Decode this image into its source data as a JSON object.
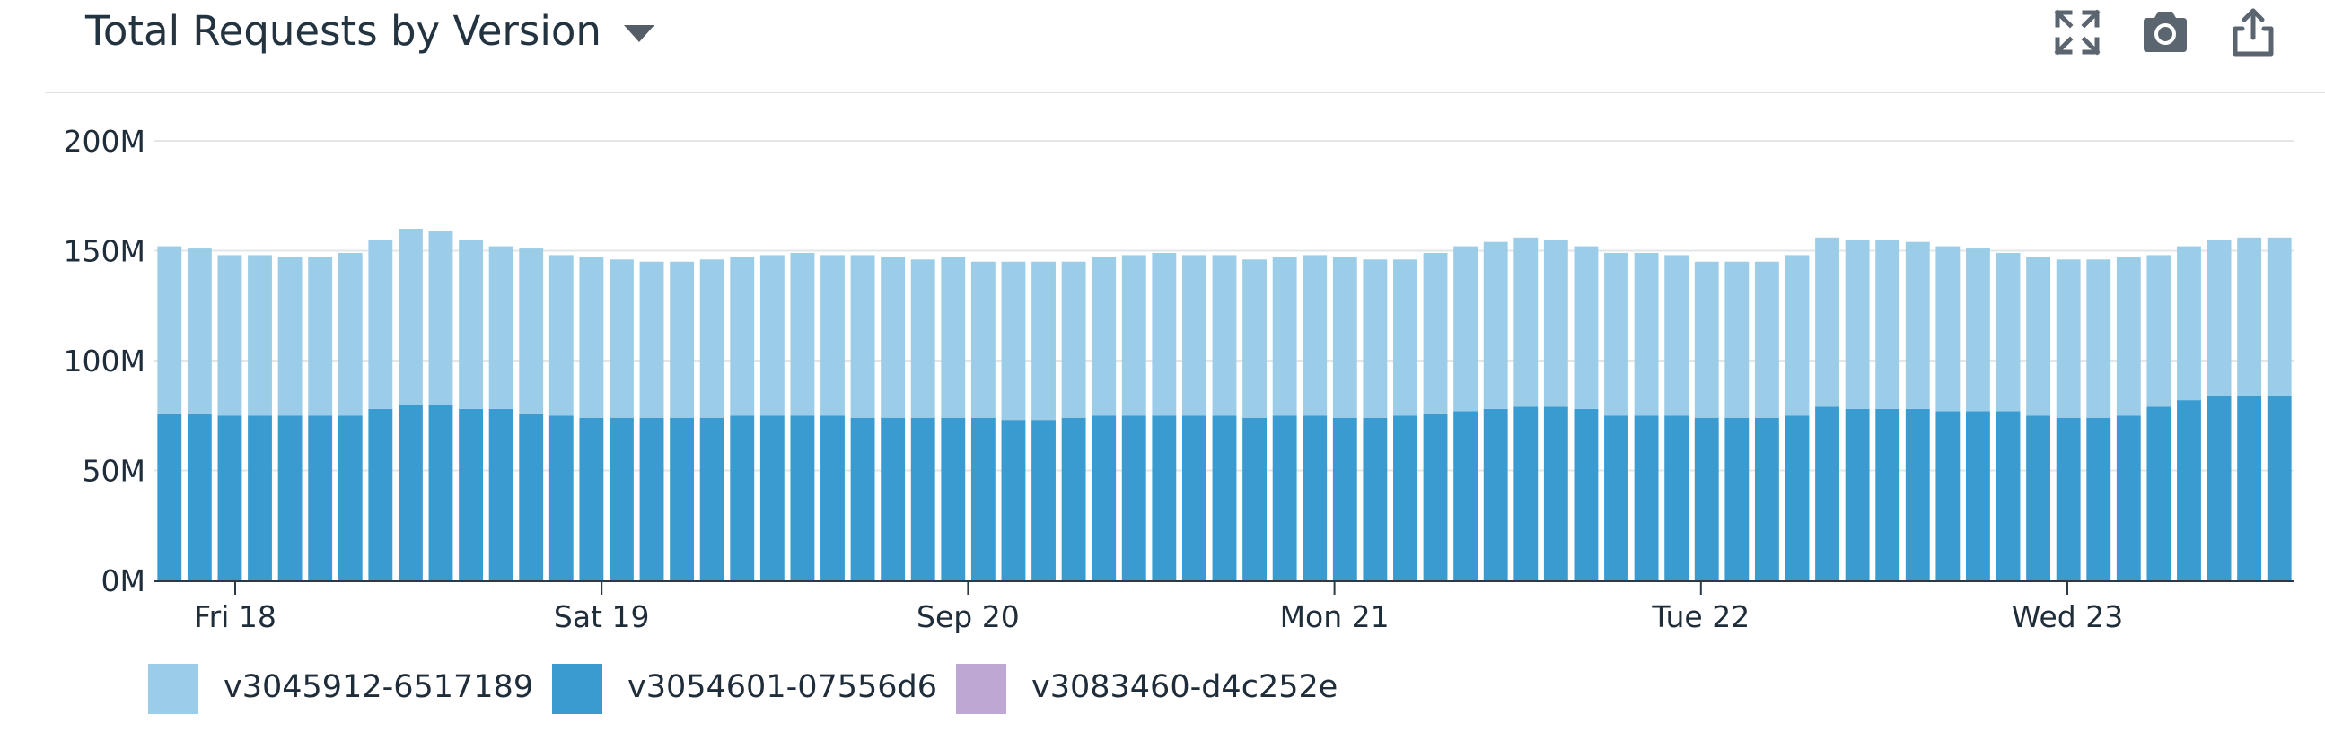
{
  "header": {
    "title": "Total Requests by Version",
    "icons": [
      "expand-icon",
      "camera-icon",
      "share-icon"
    ]
  },
  "chart_data": {
    "type": "bar",
    "stacked": true,
    "title": "Total Requests by Version",
    "ylim": [
      0,
      200
    ],
    "y_unit": "M",
    "yticks": [
      "0M",
      "50M",
      "100M",
      "150M",
      "200M"
    ],
    "x_tick_labels": [
      "Fri 18",
      "Sat 19",
      "Sep 20",
      "Mon 21",
      "Tue 22",
      "Wed 23"
    ],
    "grid": true,
    "legend_position": "bottom",
    "series": [
      {
        "name": "v3054601-07556d6",
        "color": "#3a9bd0",
        "values": [
          76,
          76,
          75,
          75,
          75,
          75,
          75,
          78,
          80,
          80,
          78,
          78,
          76,
          75,
          74,
          74,
          74,
          74,
          74,
          75,
          75,
          75,
          75,
          74,
          74,
          74,
          74,
          74,
          73,
          73,
          74,
          75,
          75,
          75,
          75,
          75,
          74,
          75,
          75,
          74,
          74,
          75,
          76,
          77,
          78,
          79,
          79,
          78,
          75,
          75,
          75,
          74,
          74,
          74,
          75,
          79,
          78,
          78,
          78,
          77,
          77,
          77,
          75,
          74,
          74,
          75,
          79,
          82,
          84,
          84,
          84
        ]
      },
      {
        "name": "v3045912-6517189",
        "color": "#9ccde8",
        "values": [
          76,
          75,
          73,
          73,
          72,
          72,
          74,
          77,
          80,
          79,
          77,
          74,
          75,
          73,
          73,
          72,
          71,
          71,
          72,
          72,
          73,
          74,
          73,
          74,
          73,
          72,
          73,
          71,
          72,
          72,
          71,
          72,
          73,
          74,
          73,
          73,
          72,
          72,
          73,
          73,
          72,
          71,
          73,
          75,
          76,
          77,
          76,
          74,
          74,
          74,
          73,
          71,
          71,
          71,
          73,
          77,
          77,
          77,
          76,
          75,
          74,
          72,
          72,
          72,
          72,
          72,
          69,
          70,
          71,
          72,
          72
        ]
      },
      {
        "name": "v3083460-d4c252e",
        "color": "#bfa7d4",
        "values": [
          0,
          0,
          0,
          0,
          0,
          0,
          0,
          0,
          0,
          0,
          0,
          0,
          0,
          0,
          0,
          0,
          0,
          0,
          0,
          0,
          0,
          0,
          0,
          0,
          0,
          0,
          0,
          0,
          0,
          0,
          0,
          0,
          0,
          0,
          0,
          0,
          0,
          0,
          0,
          0,
          0,
          0,
          0,
          0,
          0,
          0,
          0,
          0,
          0,
          0,
          0,
          0,
          0,
          0,
          0,
          0,
          0,
          0,
          0,
          0,
          0,
          0,
          0,
          0,
          0,
          0,
          0,
          0,
          0,
          0,
          0
        ]
      }
    ]
  },
  "legend": [
    {
      "label": "v3045912-6517189",
      "color": "#9ccde8"
    },
    {
      "label": "v3054601-07556d6",
      "color": "#3a9bd0"
    },
    {
      "label": "v3083460-d4c252e",
      "color": "#bfa7d4"
    }
  ]
}
